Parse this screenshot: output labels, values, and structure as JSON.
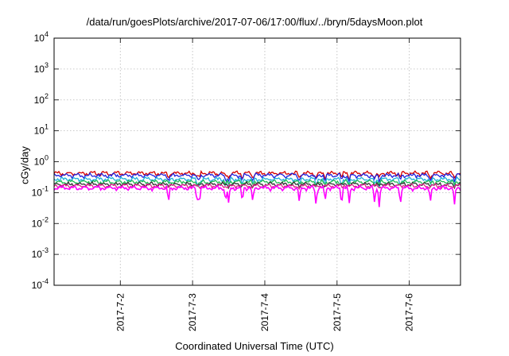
{
  "chart_data": {
    "type": "line",
    "title": "/data/run/goesPlots/archive/2017-07-06/17:00/flux/../bryn/5daysMoon.plot",
    "xlabel": "Coordinated Universal Time (UTC)",
    "ylabel": "cGy/day",
    "x_range": [
      "2017-07-01 02:00",
      "2017-07-06 17:00"
    ],
    "x_ticks": [
      "2017-7-2",
      "2017-7-3",
      "2017-7-4",
      "2017-7-5",
      "2017-7-6"
    ],
    "y_scale": "log",
    "ylim": [
      0.0001,
      10000
    ],
    "y_tick_exponents": [
      "-4",
      "-3",
      "-2",
      "-1",
      "0",
      "1",
      "2",
      "3",
      "4"
    ],
    "grid": true,
    "legend": "none",
    "series": [
      {
        "color": "#d40000",
        "base": 0.42,
        "dip_depth": 0.13
      },
      {
        "color": "#2222dd",
        "base": 0.36,
        "dip_depth": 0.14
      },
      {
        "color": "#1fb0d8",
        "base": 0.27,
        "dip_depth": 0.16
      },
      {
        "color": "#22bb55",
        "base": 0.22,
        "dip_depth": 0.06
      },
      {
        "color": "#333333",
        "base": 0.185,
        "dip_depth": 0.04
      },
      {
        "color": "#dd2288",
        "base": 0.165,
        "dip_depth": 0.03
      },
      {
        "color": "#ff00ff",
        "base": 0.14,
        "dip_depth": 0.3
      }
    ],
    "dip_times": [
      "2017-07-02 16:00",
      "2017-07-03 01:30",
      "2017-07-03 02:15",
      "2017-07-03 11:00",
      "2017-07-03 12:00",
      "2017-07-03 16:30",
      "2017-07-03 20:00",
      "2017-07-04 11:30",
      "2017-07-04 17:00",
      "2017-07-04 20:00",
      "2017-07-05 01:30",
      "2017-07-05 04:00",
      "2017-07-05 12:30",
      "2017-07-05 14:00",
      "2017-07-05 21:00",
      "2017-07-06 07:00",
      "2017-07-06 15:00"
    ]
  }
}
